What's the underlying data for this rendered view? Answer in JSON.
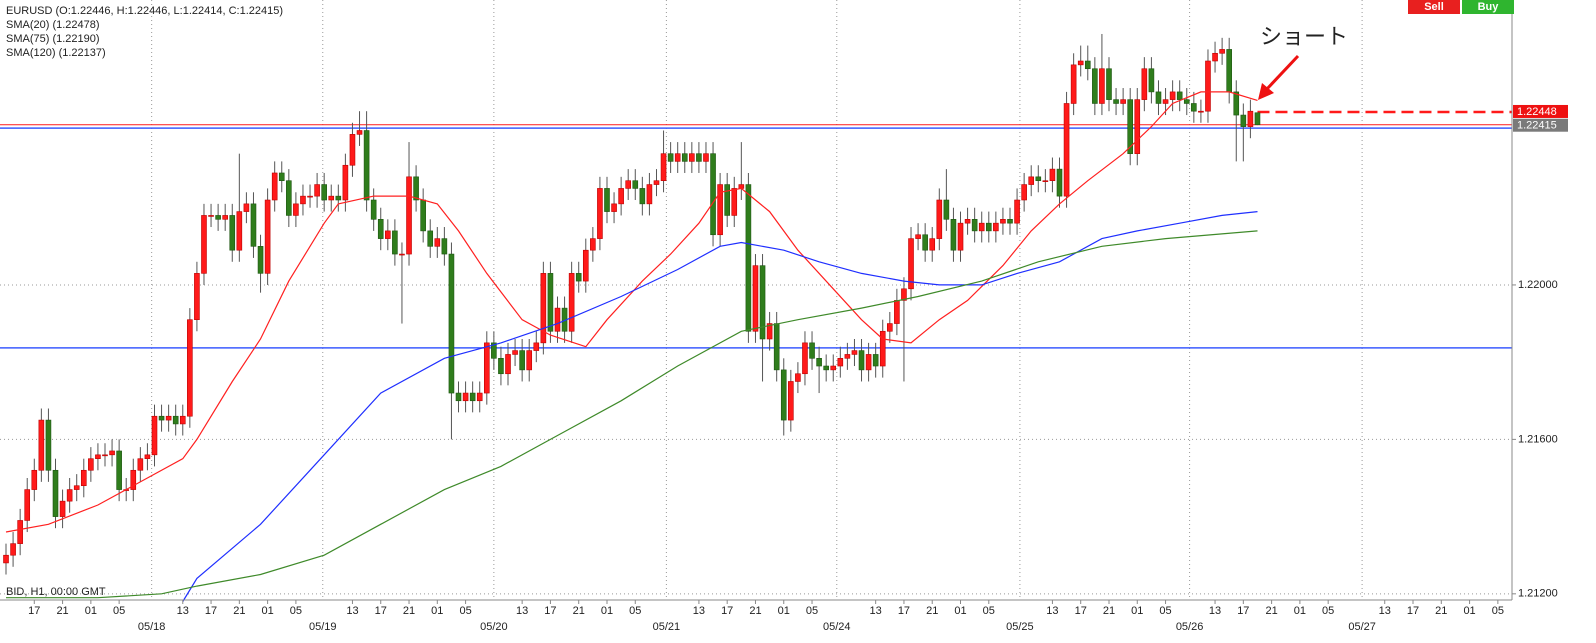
{
  "chart_data": {
    "type": "candlestick",
    "title": "EURUSD (O:1.22446, H:1.22446, L:1.22414, C:1.22415)",
    "footer": "BID, H1, 00:00 GMT",
    "annotation": "ショート",
    "buttons": [
      "Sell",
      "Buy"
    ],
    "up_color": "#ff1a1a",
    "down_color": "#2f7d1c",
    "ylim": [
      1.21184,
      1.22738
    ],
    "yticks": [
      {
        "value": 1.212,
        "label": "1.21200"
      },
      {
        "value": 1.216,
        "label": "1.21600"
      },
      {
        "value": 1.22,
        "label": "1.22000"
      }
    ],
    "xlim": [
      -0.85,
      213
    ],
    "xticks": [
      {
        "value": 4,
        "label": "17"
      },
      {
        "value": 8,
        "label": "21"
      },
      {
        "value": 12,
        "label": "01"
      },
      {
        "value": 16,
        "label": "05"
      },
      {
        "value": 25,
        "label": "13"
      },
      {
        "value": 29,
        "label": "17"
      },
      {
        "value": 33,
        "label": "21"
      },
      {
        "value": 37,
        "label": "01"
      },
      {
        "value": 41,
        "label": "05"
      },
      {
        "value": 49,
        "label": "13"
      },
      {
        "value": 53,
        "label": "17"
      },
      {
        "value": 57,
        "label": "21"
      },
      {
        "value": 61,
        "label": "01"
      },
      {
        "value": 65,
        "label": "05"
      },
      {
        "value": 73,
        "label": "13"
      },
      {
        "value": 77,
        "label": "17"
      },
      {
        "value": 81,
        "label": "21"
      },
      {
        "value": 85,
        "label": "01"
      },
      {
        "value": 89,
        "label": "05"
      },
      {
        "value": 98,
        "label": "13"
      },
      {
        "value": 102,
        "label": "17"
      },
      {
        "value": 106,
        "label": "21"
      },
      {
        "value": 110,
        "label": "01"
      },
      {
        "value": 114,
        "label": "05"
      },
      {
        "value": 123,
        "label": "13"
      },
      {
        "value": 127,
        "label": "17"
      },
      {
        "value": 131,
        "label": "21"
      },
      {
        "value": 135,
        "label": "01"
      },
      {
        "value": 139,
        "label": "05"
      },
      {
        "value": 148,
        "label": "13"
      },
      {
        "value": 152,
        "label": "17"
      },
      {
        "value": 156,
        "label": "21"
      },
      {
        "value": 160,
        "label": "01"
      },
      {
        "value": 164,
        "label": "05"
      },
      {
        "value": 171,
        "label": "13"
      },
      {
        "value": 175,
        "label": "17"
      },
      {
        "value": 179,
        "label": "21"
      },
      {
        "value": 183,
        "label": "01"
      },
      {
        "value": 187,
        "label": "05"
      },
      {
        "value": 195,
        "label": "13"
      },
      {
        "value": 199,
        "label": "17"
      },
      {
        "value": 203,
        "label": "21"
      },
      {
        "value": 207,
        "label": "01"
      },
      {
        "value": 211,
        "label": "05"
      }
    ],
    "xdates": [
      {
        "value": 20.6,
        "label": "05/18"
      },
      {
        "value": 44.8,
        "label": "05/19"
      },
      {
        "value": 69,
        "label": "05/20"
      },
      {
        "value": 93.4,
        "label": "05/21"
      },
      {
        "value": 117.5,
        "label": "05/24"
      },
      {
        "value": 143.4,
        "label": "05/25"
      },
      {
        "value": 167.4,
        "label": "05/26"
      },
      {
        "value": 191.8,
        "label": "05/27"
      }
    ],
    "grid": true,
    "open": [
      1.2128,
      1.213,
      1.2133,
      1.2139,
      1.2147,
      1.2152,
      1.2165,
      1.2152,
      1.214,
      1.2144,
      1.2147,
      1.2148,
      1.2152,
      1.2155,
      1.2156,
      1.2156,
      1.2157,
      1.2147,
      1.2147,
      1.2152,
      1.2155,
      1.2156,
      1.2166,
      1.2165,
      1.2166,
      1.2164,
      1.2166,
      1.2191,
      1.2203,
      1.2218,
      1.2218,
      1.2217,
      1.2218,
      1.2209,
      1.2219,
      1.2221,
      1.221,
      1.2203,
      1.2222,
      1.2229,
      1.2227,
      1.2218,
      1.2221,
      1.2223,
      1.2223,
      1.2226,
      1.2222,
      1.2223,
      1.2222,
      1.2231,
      1.2239,
      1.224,
      1.2222,
      1.2217,
      1.2212,
      1.2214,
      1.2208,
      1.2208,
      1.2228,
      1.2222,
      1.2214,
      1.221,
      1.2212,
      1.2208,
      1.2172,
      1.217,
      1.2172,
      1.217,
      1.2172,
      1.2185,
      1.2181,
      1.2177,
      1.2182,
      1.2183,
      1.2178,
      1.2183,
      1.2185,
      1.2203,
      1.2188,
      1.2194,
      1.2188,
      1.2203,
      1.2201,
      1.2209,
      1.2212,
      1.2225,
      1.2219,
      1.2221,
      1.2225,
      1.2227,
      1.2225,
      1.2221,
      1.2226,
      1.2227,
      1.2234,
      1.2232,
      1.2234,
      1.2232,
      1.2234,
      1.2232,
      1.2234,
      1.2213,
      1.2226,
      1.2218,
      1.2225,
      1.2226,
      1.2188,
      1.2205,
      1.2186,
      1.219,
      1.2178,
      1.2165,
      1.2175,
      1.2177,
      1.2185,
      1.2181,
      1.2179,
      1.2178,
      1.2179,
      1.2181,
      1.2182,
      1.2183,
      1.2178,
      1.2182,
      1.2179,
      1.2188,
      1.219,
      1.2196,
      1.2199,
      1.2212,
      1.2213,
      1.2209,
      1.2212,
      1.2222,
      1.2217,
      1.2209,
      1.2216,
      1.2217,
      1.2214,
      1.2216,
      1.2214,
      1.2216,
      1.2217,
      1.2216,
      1.2222,
      1.2226,
      1.2228,
      1.2227,
      1.2227,
      1.223,
      1.2223,
      1.2247,
      1.2257,
      1.2258,
      1.2256,
      1.2247,
      1.2256,
      1.2248,
      1.2247,
      1.2248,
      1.2234,
      1.2248,
      1.2256,
      1.225,
      1.2247,
      1.2248,
      1.225,
      1.2248,
      1.2247,
      1.2245,
      1.2245,
      1.2258,
      1.226,
      1.2261,
      1.225,
      1.2244,
      1.2241,
      1.22446
    ],
    "high": [
      1.2133,
      1.2136,
      1.2142,
      1.215,
      1.2155,
      1.2168,
      1.2168,
      1.2155,
      1.2147,
      1.215,
      1.2151,
      1.2155,
      1.2158,
      1.2159,
      1.2159,
      1.216,
      1.216,
      1.215,
      1.2155,
      1.2158,
      1.2159,
      1.2169,
      1.2169,
      1.2169,
      1.2169,
      1.2169,
      1.2194,
      1.2206,
      1.2221,
      1.2221,
      1.2221,
      1.2221,
      1.2221,
      1.2234,
      1.2224,
      1.2224,
      1.2213,
      1.2225,
      1.2232,
      1.2232,
      1.223,
      1.2224,
      1.2226,
      1.2226,
      1.2229,
      1.2229,
      1.2226,
      1.2226,
      1.2234,
      1.2242,
      1.2245,
      1.2245,
      1.2225,
      1.222,
      1.2217,
      1.2217,
      1.2211,
      1.2237,
      1.2231,
      1.2225,
      1.2217,
      1.2215,
      1.2215,
      1.2211,
      1.2175,
      1.2175,
      1.2175,
      1.2175,
      1.2188,
      1.2188,
      1.2184,
      1.2185,
      1.2186,
      1.2186,
      1.2186,
      1.2188,
      1.2206,
      1.2206,
      1.2197,
      1.2197,
      1.2206,
      1.2206,
      1.2212,
      1.2215,
      1.2228,
      1.2228,
      1.2224,
      1.2228,
      1.223,
      1.223,
      1.2228,
      1.2229,
      1.223,
      1.224,
      1.2237,
      1.2237,
      1.2237,
      1.2237,
      1.2237,
      1.2237,
      1.2237,
      1.2229,
      1.2229,
      1.2228,
      1.2237,
      1.2229,
      1.2208,
      1.2208,
      1.2193,
      1.2193,
      1.2181,
      1.2178,
      1.218,
      1.2188,
      1.2188,
      1.2184,
      1.2182,
      1.2182,
      1.2184,
      1.2185,
      1.2186,
      1.2186,
      1.2185,
      1.2185,
      1.2191,
      1.2193,
      1.2199,
      1.2202,
      1.2215,
      1.2216,
      1.2216,
      1.2215,
      1.2225,
      1.223,
      1.222,
      1.2219,
      1.222,
      1.222,
      1.2219,
      1.2219,
      1.2219,
      1.222,
      1.222,
      1.2225,
      1.2229,
      1.2231,
      1.2231,
      1.223,
      1.2233,
      1.2233,
      1.225,
      1.226,
      1.2262,
      1.2262,
      1.2259,
      1.2265,
      1.2259,
      1.2251,
      1.2251,
      1.2251,
      1.2251,
      1.2259,
      1.2259,
      1.2253,
      1.2251,
      1.2253,
      1.2253,
      1.2251,
      1.225,
      1.2248,
      1.2261,
      1.2263,
      1.2264,
      1.2264,
      1.2253,
      1.2247,
      1.2248,
      1.22446
    ],
    "low": [
      1.2125,
      1.2127,
      1.213,
      1.2136,
      1.2144,
      1.2149,
      1.2149,
      1.2137,
      1.2137,
      1.2141,
      1.2144,
      1.2145,
      1.2149,
      1.2152,
      1.2153,
      1.2153,
      1.2144,
      1.2144,
      1.2144,
      1.2149,
      1.2152,
      1.2153,
      1.2162,
      1.2162,
      1.2161,
      1.2161,
      1.2163,
      1.2188,
      1.22,
      1.2215,
      1.2214,
      1.2214,
      1.2206,
      1.2206,
      1.2216,
      1.2207,
      1.2198,
      1.22,
      1.2219,
      1.2224,
      1.2215,
      1.2215,
      1.2218,
      1.222,
      1.222,
      1.2219,
      1.2219,
      1.2219,
      1.2219,
      1.2228,
      1.2236,
      1.2219,
      1.2214,
      1.2209,
      1.2209,
      1.2205,
      1.219,
      1.2205,
      1.2219,
      1.2211,
      1.2207,
      1.2207,
      1.2205,
      1.216,
      1.2167,
      1.2167,
      1.2167,
      1.2167,
      1.2169,
      1.2178,
      1.2174,
      1.2174,
      1.2179,
      1.2175,
      1.2175,
      1.218,
      1.2182,
      1.2185,
      1.2185,
      1.2185,
      1.2185,
      1.2198,
      1.2198,
      1.2206,
      1.2209,
      1.2216,
      1.2216,
      1.2218,
      1.2222,
      1.2222,
      1.2218,
      1.2218,
      1.2223,
      1.2224,
      1.2229,
      1.2229,
      1.2229,
      1.2229,
      1.2229,
      1.2229,
      1.221,
      1.221,
      1.2215,
      1.2215,
      1.2222,
      1.2185,
      1.2185,
      1.2175,
      1.2183,
      1.2175,
      1.2161,
      1.2162,
      1.2172,
      1.2174,
      1.2178,
      1.2172,
      1.2175,
      1.2175,
      1.2176,
      1.2178,
      1.2179,
      1.2175,
      1.2175,
      1.2176,
      1.2176,
      1.2185,
      1.2187,
      1.2175,
      1.2196,
      1.2209,
      1.2206,
      1.2206,
      1.2209,
      1.2214,
      1.2206,
      1.2206,
      1.2213,
      1.2211,
      1.2211,
      1.2211,
      1.2211,
      1.2213,
      1.2213,
      1.2213,
      1.2219,
      1.2223,
      1.2224,
      1.2224,
      1.2224,
      1.222,
      1.222,
      1.2244,
      1.2254,
      1.2253,
      1.2244,
      1.2244,
      1.2245,
      1.2244,
      1.2244,
      1.2231,
      1.2231,
      1.2245,
      1.2247,
      1.2244,
      1.2244,
      1.2245,
      1.2245,
      1.2244,
      1.2242,
      1.2242,
      1.2242,
      1.2255,
      1.2257,
      1.2247,
      1.2232,
      1.2232,
      1.2238,
      1.22414
    ],
    "close": [
      1.213,
      1.2133,
      1.2139,
      1.2147,
      1.2152,
      1.2165,
      1.2152,
      1.214,
      1.2144,
      1.2147,
      1.2148,
      1.2152,
      1.2155,
      1.2156,
      1.2156,
      1.2157,
      1.2147,
      1.2147,
      1.2152,
      1.2155,
      1.2156,
      1.2166,
      1.2165,
      1.2166,
      1.2164,
      1.2166,
      1.2191,
      1.2203,
      1.2218,
      1.2218,
      1.2217,
      1.2218,
      1.2209,
      1.2219,
      1.2221,
      1.221,
      1.2203,
      1.2222,
      1.2229,
      1.2227,
      1.2218,
      1.2221,
      1.2223,
      1.2223,
      1.2226,
      1.2222,
      1.2223,
      1.2222,
      1.2231,
      1.2239,
      1.224,
      1.2222,
      1.2217,
      1.2212,
      1.2214,
      1.2208,
      1.2208,
      1.2228,
      1.2222,
      1.2214,
      1.221,
      1.2212,
      1.2208,
      1.2172,
      1.217,
      1.2172,
      1.217,
      1.2172,
      1.2185,
      1.2181,
      1.2177,
      1.2182,
      1.2183,
      1.2178,
      1.2183,
      1.2185,
      1.2203,
      1.2188,
      1.2194,
      1.2188,
      1.2203,
      1.2201,
      1.2209,
      1.2212,
      1.2225,
      1.2219,
      1.2221,
      1.2225,
      1.2227,
      1.2225,
      1.2221,
      1.2226,
      1.2227,
      1.2234,
      1.2232,
      1.2234,
      1.2232,
      1.2234,
      1.2232,
      1.2234,
      1.2213,
      1.2226,
      1.2218,
      1.2225,
      1.2226,
      1.2188,
      1.2205,
      1.2186,
      1.219,
      1.2178,
      1.2165,
      1.2175,
      1.2177,
      1.2185,
      1.2181,
      1.2179,
      1.2178,
      1.2179,
      1.2181,
      1.2182,
      1.2183,
      1.2178,
      1.2182,
      1.2179,
      1.2188,
      1.219,
      1.2196,
      1.2199,
      1.2212,
      1.2213,
      1.2209,
      1.2212,
      1.2222,
      1.2217,
      1.2209,
      1.2216,
      1.2217,
      1.2214,
      1.2216,
      1.2214,
      1.2216,
      1.2217,
      1.2216,
      1.2222,
      1.2226,
      1.2228,
      1.2227,
      1.2227,
      1.223,
      1.2223,
      1.2247,
      1.2257,
      1.2258,
      1.2256,
      1.2247,
      1.2256,
      1.2248,
      1.2247,
      1.2248,
      1.2234,
      1.2248,
      1.2256,
      1.225,
      1.2247,
      1.2248,
      1.225,
      1.2248,
      1.2247,
      1.2245,
      1.2245,
      1.2258,
      1.226,
      1.2261,
      1.225,
      1.2244,
      1.2241,
      1.2245,
      1.22415
    ],
    "series": [
      {
        "name": "SMA(20) (1.22478)",
        "color": "#ff2020",
        "x": [
          0,
          6,
          13,
          20,
          25,
          27,
          32,
          36,
          40,
          45,
          47,
          52,
          57,
          61,
          64,
          68,
          73,
          77,
          82,
          85,
          90,
          94,
          98,
          101,
          104,
          108,
          112,
          117,
          121,
          124,
          128,
          132,
          136,
          141,
          145,
          149,
          153,
          158,
          162,
          165,
          169,
          173,
          177
        ],
        "values": [
          1.2136,
          1.2138,
          1.2143,
          1.215,
          1.2155,
          1.216,
          1.2175,
          1.2186,
          1.2201,
          1.2216,
          1.2221,
          1.2223,
          1.2223,
          1.2221,
          1.2214,
          1.2203,
          1.2191,
          1.2187,
          1.2184,
          1.2191,
          1.2201,
          1.2208,
          1.2216,
          1.2224,
          1.2225,
          1.2219,
          1.2209,
          1.2199,
          1.2191,
          1.2186,
          1.2185,
          1.2191,
          1.2196,
          1.2205,
          1.2214,
          1.2221,
          1.2227,
          1.2234,
          1.2241,
          1.2247,
          1.225,
          1.225,
          1.22478
        ]
      },
      {
        "name": "SMA(75) (1.22190)",
        "color": "#1f2fff",
        "x": [
          25,
          27,
          36,
          45,
          53,
          62,
          70,
          78,
          87,
          95,
          101,
          104,
          110,
          115,
          121,
          127,
          132,
          138,
          143,
          149,
          155,
          160,
          166,
          172,
          177
        ],
        "values": [
          1.2118,
          1.2124,
          1.2138,
          1.2156,
          1.2172,
          1.2181,
          1.2185,
          1.219,
          1.2197,
          1.2204,
          1.221,
          1.2211,
          1.2209,
          1.2206,
          1.2203,
          1.2201,
          1.22,
          1.22,
          1.2203,
          1.2206,
          1.2212,
          1.2214,
          1.2216,
          1.2218,
          1.2219
        ]
      },
      {
        "name": "SMA(120) (1.22137)",
        "color": "#3f8a2a",
        "x": [
          0,
          13,
          22,
          27,
          36,
          45,
          53,
          62,
          70,
          78,
          87,
          95,
          104,
          112,
          121,
          129,
          138,
          146,
          155,
          164,
          177
        ],
        "values": [
          1.2119,
          1.2119,
          1.212,
          1.2122,
          1.2125,
          1.213,
          1.2138,
          1.2147,
          1.2153,
          1.2161,
          1.217,
          1.2179,
          1.2188,
          1.2191,
          1.2194,
          1.2197,
          1.2201,
          1.2206,
          1.221,
          1.2212,
          1.2214
        ]
      }
    ],
    "hlines": [
      {
        "value": 1.22406,
        "color": "#3b5bff"
      },
      {
        "value": 1.21837,
        "color": "#3b5bff"
      }
    ],
    "bid_line": 1.22415,
    "order_line": 1.22448
  }
}
